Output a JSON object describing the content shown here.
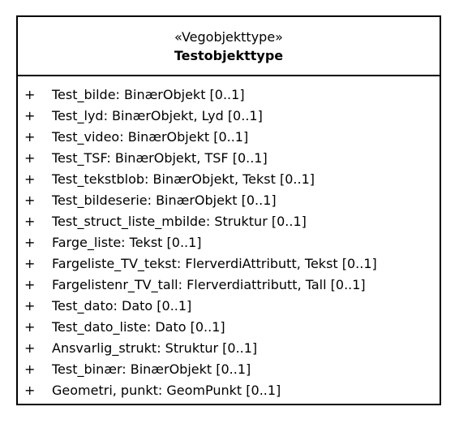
{
  "class": {
    "stereotype": "«Vegobjekttype»",
    "name": "Testobjekttype",
    "attributes": [
      {
        "visibility": "+",
        "text": "Test_bilde: BinærObjekt [0..1]"
      },
      {
        "visibility": "+",
        "text": "Test_lyd: BinærObjekt, Lyd [0..1]"
      },
      {
        "visibility": "+",
        "text": "Test_video: BinærObjekt [0..1]"
      },
      {
        "visibility": "+",
        "text": "Test_TSF: BinærObjekt, TSF [0..1]"
      },
      {
        "visibility": "+",
        "text": "Test_tekstblob: BinærObjekt, Tekst [0..1]"
      },
      {
        "visibility": "+",
        "text": "Test_bildeserie: BinærObjekt [0..1]"
      },
      {
        "visibility": "+",
        "text": "Test_struct_liste_mbilde: Struktur [0..1]"
      },
      {
        "visibility": "+",
        "text": "Farge_liste: Tekst [0..1]"
      },
      {
        "visibility": "+",
        "text": "Fargeliste_TV_tekst: FlerverdiAttributt, Tekst [0..1]"
      },
      {
        "visibility": "+",
        "text": "Fargelistenr_TV_tall: Flerverdiattributt, Tall [0..1]"
      },
      {
        "visibility": "+",
        "text": "Test_dato: Dato [0..1]"
      },
      {
        "visibility": "+",
        "text": "Test_dato_liste: Dato [0..1]"
      },
      {
        "visibility": "+",
        "text": "Ansvarlig_strukt: Struktur [0..1]"
      },
      {
        "visibility": "+",
        "text": "Test_binær: BinærObjekt [0..1]"
      },
      {
        "visibility": "+",
        "text": "Geometri, punkt: GeomPunkt [0..1]"
      }
    ]
  }
}
